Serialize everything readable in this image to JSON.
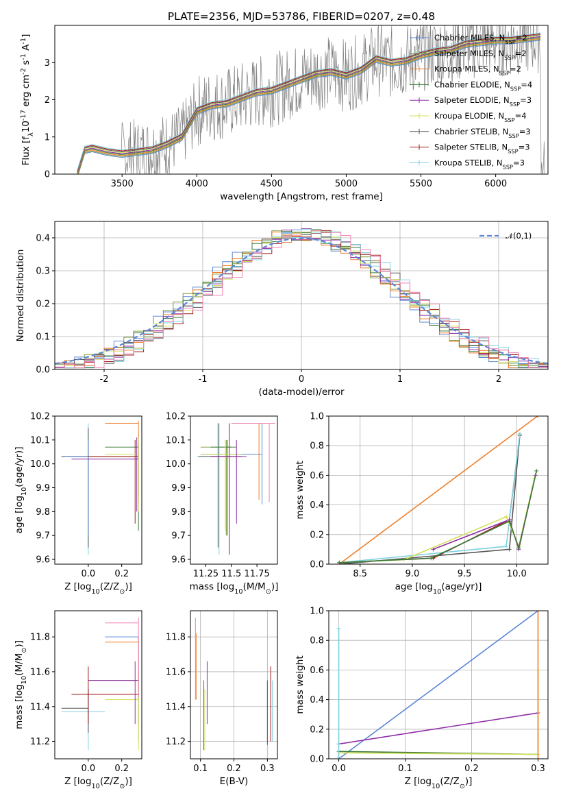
{
  "figure": {
    "title": "PLATE=2356, MJD=53786, FIBERID=0207, z=0.48"
  },
  "legend_entries": [
    {
      "label": "Chabrier MILES, N$_{SSP}$=2",
      "color": "#5b86d6"
    },
    {
      "label": "Salpeter MILES, N$_{SSP}$=2",
      "color": "#7a9a3c"
    },
    {
      "label": "Kroupa MILES, N$_{SSP}$=2",
      "color": "#f07f2a"
    },
    {
      "label": "Chabrier ELODIE, N$_{SSP}$=4",
      "color": "#3a7a3a"
    },
    {
      "label": "Salpeter ELODIE, N$_{SSP}$=3",
      "color": "#8e2ba6"
    },
    {
      "label": "Kroupa ELODIE, N$_{SSP}$=4",
      "color": "#d4e05a"
    },
    {
      "label": "Chabrier STELIB, N$_{SSP}$=3",
      "color": "#555555"
    },
    {
      "label": "Salpeter STELIB, N$_{SSP}$=3",
      "color": "#a01818"
    },
    {
      "label": "Kroupa STELIB, N$_{SSP}$=3",
      "color": "#7ed0e0"
    }
  ],
  "colors": {
    "data_spectrum": "#808080",
    "pink": "#f07fb0",
    "normal_curve": "#5b86d6"
  },
  "chart_data": [
    {
      "id": "spectrum",
      "type": "line",
      "xlabel": "wavelength [Angstrom, rest frame]",
      "ylabel": "Flux [f$_\\lambda$10$^{-17}$ erg cm$^{-2}$ s$^{-1}$ A$^{-1}$]",
      "xlim": [
        3050,
        6350
      ],
      "ylim": [
        0,
        4.0
      ],
      "xticks": [
        3500,
        4000,
        4500,
        5000,
        5500,
        6000
      ],
      "yticks": [
        0,
        1,
        2,
        3
      ],
      "model_x": [
        3200,
        3250,
        3300,
        3400,
        3500,
        3600,
        3700,
        3800,
        3900,
        4000,
        4100,
        4200,
        4300,
        4400,
        4500,
        4600,
        4700,
        4800,
        4900,
        5000,
        5100,
        5200,
        5300,
        5400,
        5500,
        5600,
        5700,
        5800,
        5900,
        6000,
        6100,
        6200,
        6300
      ],
      "model_y": [
        0.0,
        0.65,
        0.7,
        0.6,
        0.55,
        0.6,
        0.65,
        0.8,
        1.0,
        1.7,
        1.85,
        1.9,
        2.05,
        2.2,
        2.25,
        2.4,
        2.55,
        2.7,
        2.75,
        2.65,
        2.8,
        3.1,
        3.0,
        3.05,
        3.2,
        3.3,
        3.35,
        3.5,
        3.55,
        3.6,
        3.6,
        3.65,
        3.7
      ]
    },
    {
      "id": "residuals",
      "type": "line",
      "xlabel": "(data-model)/error",
      "ylabel": "Normed distribution",
      "xlim": [
        -2.5,
        2.5
      ],
      "ylim": [
        0,
        0.45
      ],
      "xticks": [
        -2,
        -1,
        0,
        1,
        2
      ],
      "yticks": [
        0.0,
        0.1,
        0.2,
        0.3,
        0.4
      ],
      "legend": "$\\mathcal{N}(0,1)$"
    },
    {
      "id": "age-vs-Z",
      "type": "scatter",
      "xlabel": "Z [log$_{10}$(Z/Z$_\\odot$)]",
      "ylabel": "age  [log$_{10}$(age/yr)]",
      "xlim": [
        -0.2,
        0.32
      ],
      "ylim": [
        9.58,
        10.2
      ],
      "xticks": [
        0.0,
        0.2
      ],
      "yticks": [
        9.6,
        9.7,
        9.8,
        9.9,
        10.0,
        10.1,
        10.2
      ]
    },
    {
      "id": "age-vs-mass",
      "type": "scatter",
      "xlabel": "mass [log$_{10}$(M/M$_\\odot$)]",
      "ylabel": "",
      "xlim": [
        11.1,
        11.95
      ],
      "ylim": [
        9.58,
        10.2
      ],
      "xticks": [
        11.25,
        11.5,
        11.75
      ],
      "yticks": [
        9.6,
        9.7,
        9.8,
        9.9,
        10.0,
        10.1,
        10.2
      ]
    },
    {
      "id": "weight-vs-age",
      "type": "line",
      "xlabel": "age  [log$_{10}$(age/yr)]",
      "ylabel": "mass weight",
      "xlim": [
        8.2,
        10.3
      ],
      "ylim": [
        0,
        1.0
      ],
      "xticks": [
        8.5,
        9.0,
        9.5,
        10.0
      ],
      "yticks": [
        0.0,
        0.2,
        0.4,
        0.6,
        0.8,
        1.0
      ]
    },
    {
      "id": "mass-vs-Z",
      "type": "scatter",
      "xlabel": "Z [log$_{10}$(Z/Z$_\\odot$)]",
      "ylabel": "mass [log$_{10}$(M/M$_\\odot$)]",
      "xlim": [
        -0.2,
        0.32
      ],
      "ylim": [
        11.1,
        11.95
      ],
      "xticks": [
        0.0,
        0.2
      ],
      "yticks": [
        11.2,
        11.4,
        11.6,
        11.8
      ]
    },
    {
      "id": "mass-vs-EBV",
      "type": "scatter",
      "xlabel": "E(B-V)",
      "ylabel": "",
      "xlim": [
        0.07,
        0.33
      ],
      "ylim": [
        11.1,
        11.95
      ],
      "xticks": [
        0.1,
        0.2,
        0.3
      ],
      "yticks": [
        11.2,
        11.4,
        11.6,
        11.8
      ]
    },
    {
      "id": "weight-vs-Z",
      "type": "line",
      "xlabel": "Z [log$_{10}$(Z/Z$_\\odot$)]",
      "ylabel": "mass weight",
      "xlim": [
        -0.015,
        0.315
      ],
      "ylim": [
        0,
        1.0
      ],
      "xticks": [
        0.0,
        0.1,
        0.2,
        0.3
      ],
      "yticks": [
        0.0,
        0.2,
        0.4,
        0.6,
        0.8,
        1.0
      ]
    }
  ]
}
